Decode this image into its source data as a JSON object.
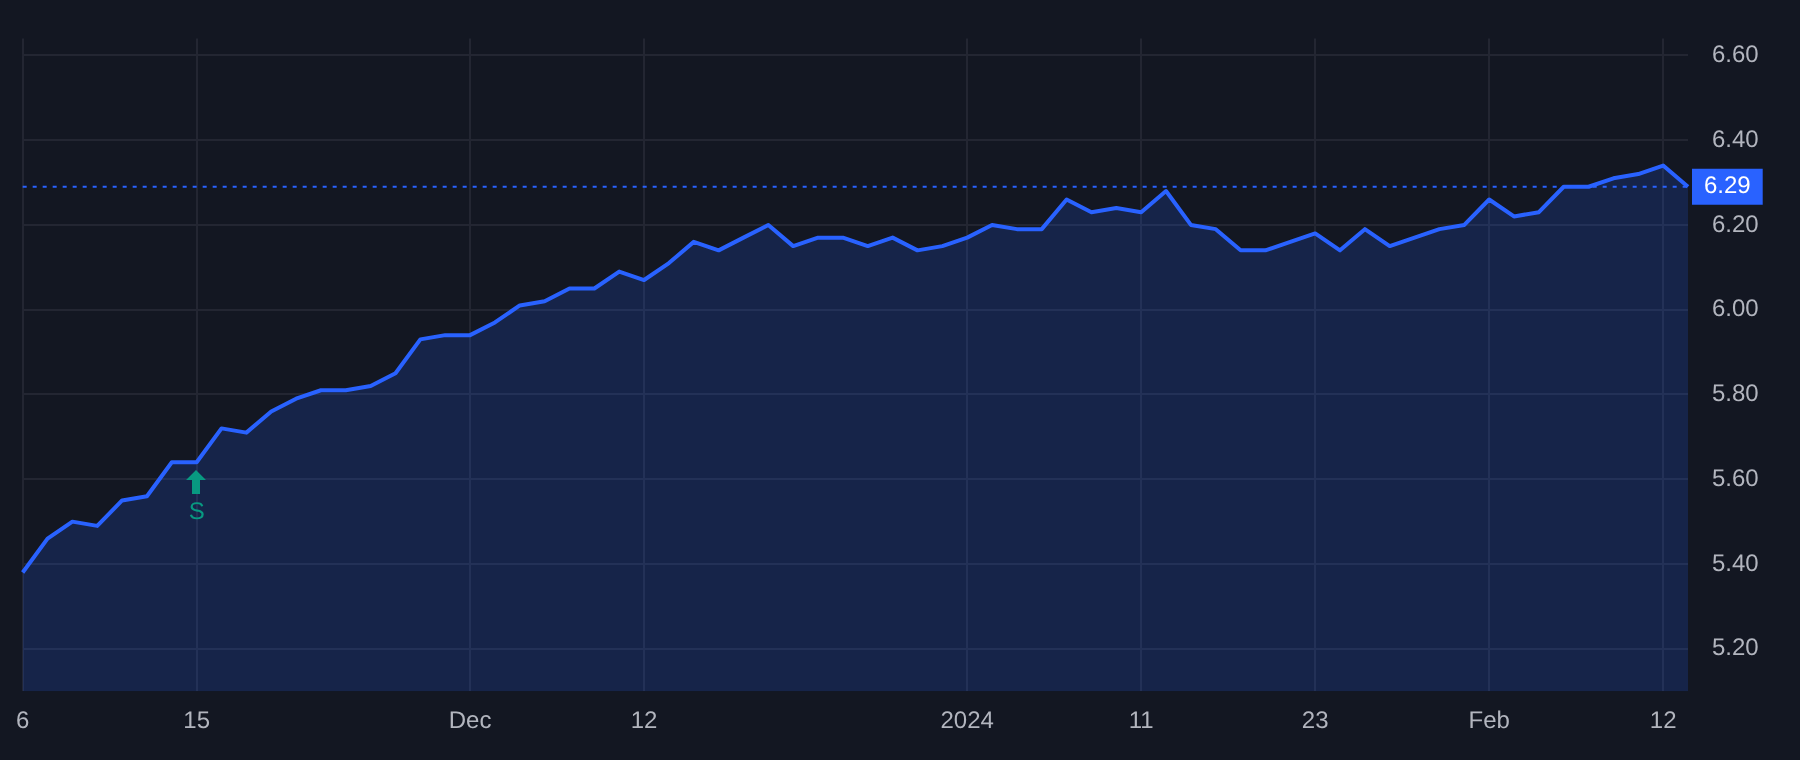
{
  "chart_data": {
    "type": "area",
    "categories": [
      "6",
      null,
      null,
      null,
      null,
      null,
      null,
      "15",
      null,
      null,
      null,
      null,
      null,
      null,
      null,
      null,
      null,
      null,
      "Dec",
      null,
      null,
      null,
      null,
      null,
      null,
      "12",
      null,
      null,
      null,
      null,
      null,
      null,
      null,
      null,
      null,
      null,
      null,
      null,
      "2024",
      null,
      null,
      null,
      null,
      null,
      null,
      "11",
      null,
      null,
      null,
      null,
      null,
      null,
      "23",
      null,
      null,
      null,
      null,
      null,
      null,
      "Feb",
      null,
      null,
      null,
      null,
      null,
      null,
      "12",
      null
    ],
    "series": [
      {
        "color": "#2962ff",
        "values": [
          5.38,
          5.46,
          5.5,
          5.49,
          5.55,
          5.56,
          5.64,
          5.64,
          5.72,
          5.71,
          5.76,
          5.79,
          5.81,
          5.81,
          5.82,
          5.85,
          5.93,
          5.94,
          5.94,
          5.97,
          6.01,
          6.02,
          6.05,
          6.05,
          6.09,
          6.07,
          6.11,
          6.16,
          6.14,
          6.17,
          6.2,
          6.15,
          6.17,
          6.17,
          6.15,
          6.17,
          6.14,
          6.15,
          6.17,
          6.2,
          6.19,
          6.19,
          6.26,
          6.23,
          6.24,
          6.23,
          6.28,
          6.2,
          6.19,
          6.14,
          6.14,
          6.16,
          6.18,
          6.14,
          6.19,
          6.15,
          6.17,
          6.19,
          6.2,
          6.26,
          6.22,
          6.23,
          6.29,
          6.29,
          6.31,
          6.32,
          6.34,
          6.29
        ]
      }
    ],
    "ylim": [
      5.1,
      6.64
    ],
    "yticks": [
      {
        "value": 5.2,
        "label": "5.20"
      },
      {
        "value": 5.4,
        "label": "5.40"
      },
      {
        "value": 5.6,
        "label": "5.60"
      },
      {
        "value": 5.8,
        "label": "5.80"
      },
      {
        "value": 6.0,
        "label": "6.00"
      },
      {
        "value": 6.2,
        "label": "6.20"
      },
      {
        "value": 6.4,
        "label": "6.40"
      },
      {
        "value": 6.6,
        "label": "6.60"
      }
    ],
    "ref_lines": [
      {
        "axis": "y",
        "value": 6.29,
        "label": "6.29",
        "color": "#2962ff",
        "line_style": "dotted"
      }
    ],
    "annotations": [
      {
        "text": "S",
        "x": "15",
        "y": 5.64
      }
    ],
    "grid": true,
    "legend": false
  }
}
